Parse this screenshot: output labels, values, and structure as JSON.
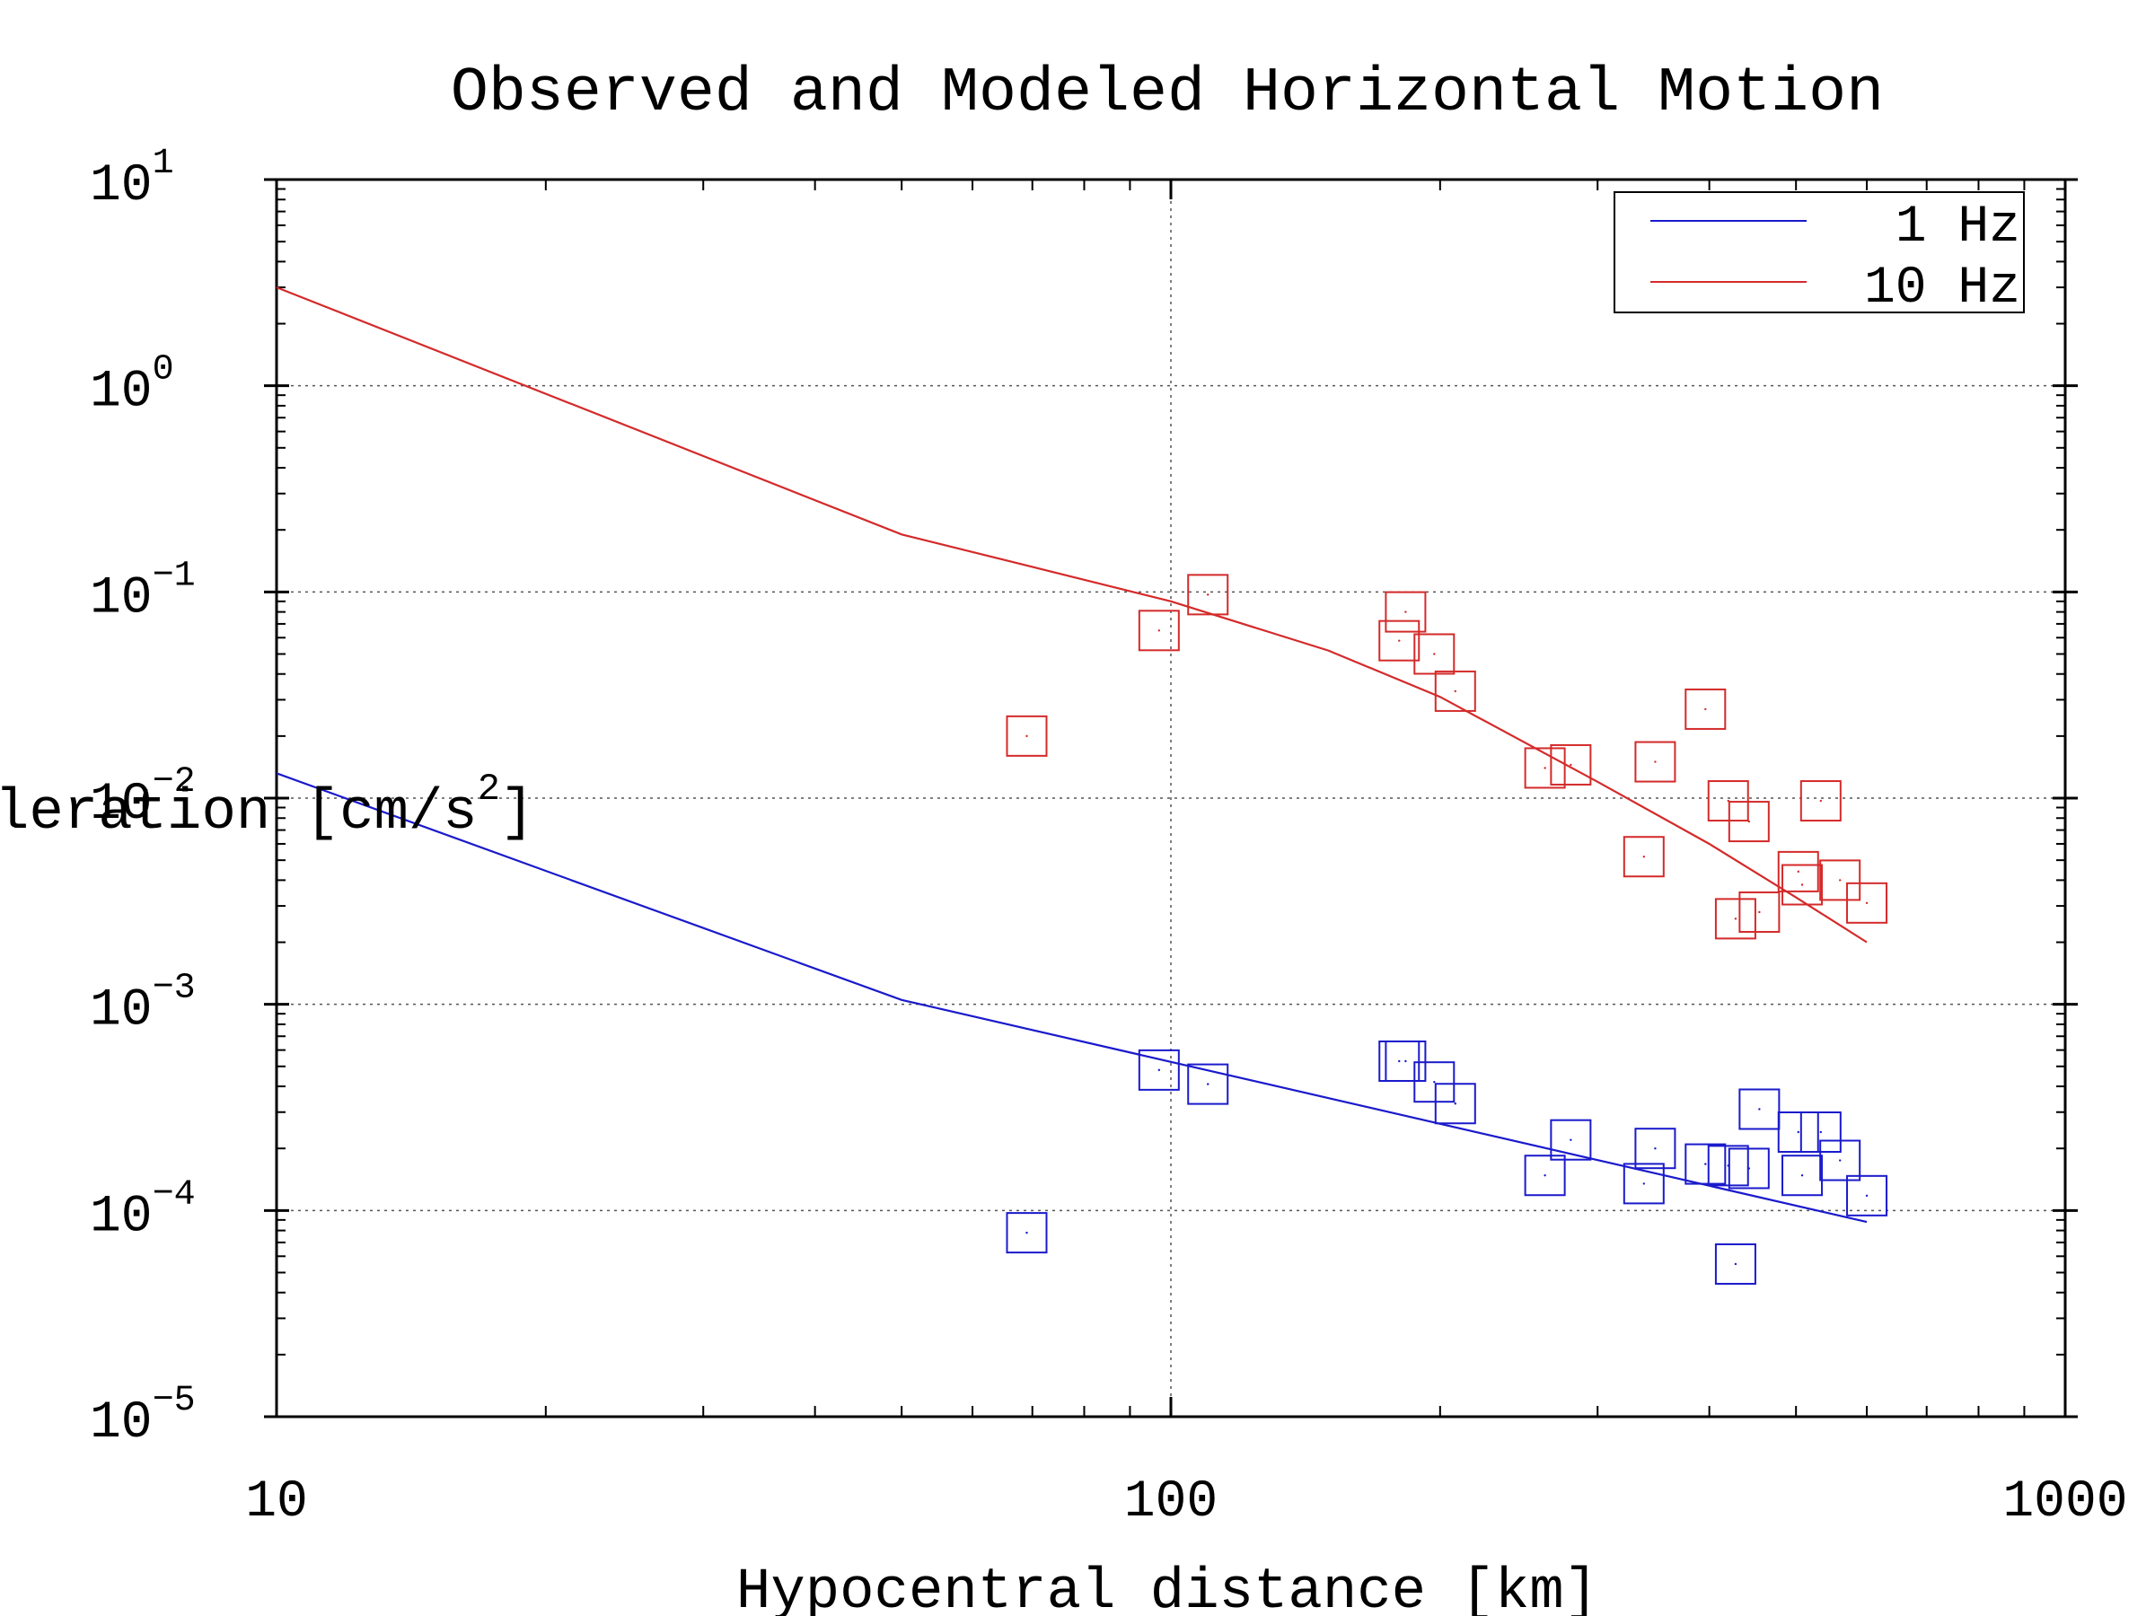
{
  "chart_data": {
    "type": "scatter",
    "title": "Observed and Modeled Horizontal Motion",
    "xlabel": "Hypocentral distance [km]",
    "ylabel_prefix": "leration [cm/s",
    "ylabel_sup": "2",
    "ylabel_suffix": "]",
    "x_scale": "log",
    "y_scale": "log",
    "xlim": [
      10,
      1000
    ],
    "ylim": [
      1e-05,
      10
    ],
    "grid": true,
    "legend_position": "top-right",
    "x_ticks": [
      {
        "value": 10,
        "label": "10"
      },
      {
        "value": 100,
        "label": "100"
      },
      {
        "value": 1000,
        "label": "1000"
      }
    ],
    "y_ticks": [
      {
        "value": 10,
        "base": "10",
        "exp": "1"
      },
      {
        "value": 1,
        "base": "10",
        "exp": "0"
      },
      {
        "value": 0.1,
        "base": "10",
        "exp": "−1"
      },
      {
        "value": 0.01,
        "base": "10",
        "exp": "−2"
      },
      {
        "value": 0.001,
        "base": "10",
        "exp": "−3"
      },
      {
        "value": 0.0001,
        "base": "10",
        "exp": "−4"
      },
      {
        "value": 1e-05,
        "base": "10",
        "exp": "−5"
      }
    ],
    "series": [
      {
        "name": "1 Hz",
        "color": "#1a1acc",
        "model": {
          "x": [
            10,
            50,
            600
          ],
          "y": [
            0.0132,
            0.00105,
            8.8e-05
          ]
        },
        "observed": {
          "x": [
            69,
            97,
            110,
            180,
            183,
            197,
            208,
            262,
            280,
            338,
            348,
            396,
            420,
            428,
            443,
            455,
            503,
            508,
            533,
            560,
            600
          ],
          "y": [
            7.8e-05,
            0.00048,
            0.00041,
            0.00053,
            0.00053,
            0.00042,
            0.00033,
            0.000148,
            0.00022,
            0.000135,
            0.0002,
            0.000168,
            0.000165,
            5.5e-05,
            0.00016,
            0.00031,
            0.00024,
            0.000148,
            0.00024,
            0.000175,
            0.000118
          ]
        }
      },
      {
        "name": "10 Hz",
        "color": "#d42a2a",
        "model": {
          "x": [
            10,
            50,
            100,
            150,
            200,
            300,
            400,
            500,
            600
          ],
          "y": [
            3.0,
            0.19,
            0.09,
            0.052,
            0.031,
            0.012,
            0.006,
            0.0033,
            0.002
          ]
        },
        "observed": {
          "x": [
            69,
            97,
            110,
            180,
            183,
            197,
            208,
            262,
            280,
            338,
            348,
            396,
            420,
            428,
            443,
            455,
            503,
            508,
            533,
            560,
            600
          ],
          "y": [
            0.02,
            0.065,
            0.097,
            0.058,
            0.08,
            0.05,
            0.033,
            0.014,
            0.0145,
            0.0052,
            0.015,
            0.027,
            0.0097,
            0.0026,
            0.0077,
            0.0028,
            0.0044,
            0.0038,
            0.0097,
            0.004,
            0.0031
          ]
        }
      }
    ]
  }
}
